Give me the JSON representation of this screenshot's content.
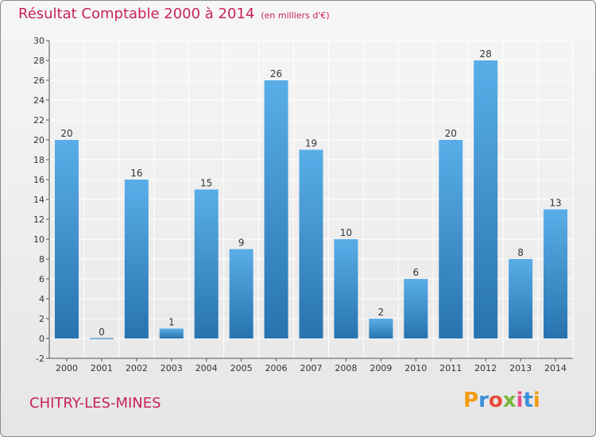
{
  "title": "Résultat Comptable 2000 à 2014",
  "unit": "(en milliers d'€)",
  "commune": "CHITRY-LES-MINES",
  "logo": {
    "letters": [
      "P",
      "r",
      "o",
      "x",
      "i",
      "t",
      "i"
    ],
    "colors": [
      "#f39c12",
      "#3a8fd8",
      "#e84c3d",
      "#7ab83d",
      "#e84c8a",
      "#3a8fd8",
      "#f39c12"
    ]
  },
  "colors": {
    "title": "#c8235a",
    "bar_top": "#5aaee8",
    "bar_bottom": "#2773b0",
    "grid": "#ffffff",
    "axis": "#555555"
  },
  "chart_data": {
    "type": "bar",
    "categories": [
      "2000",
      "2001",
      "2002",
      "2003",
      "2004",
      "2005",
      "2006",
      "2007",
      "2008",
      "2009",
      "2010",
      "2011",
      "2012",
      "2013",
      "2014"
    ],
    "values": [
      20,
      0,
      16,
      1,
      15,
      9,
      26,
      19,
      10,
      2,
      6,
      20,
      28,
      8,
      13
    ],
    "ylim": [
      -2,
      30
    ],
    "yticks": [
      -2,
      0,
      2,
      4,
      6,
      8,
      10,
      12,
      14,
      16,
      18,
      20,
      22,
      24,
      26,
      28,
      30
    ],
    "title": "Résultat Comptable 2000 à 2014",
    "xlabel": "",
    "ylabel": "",
    "grid": true
  }
}
